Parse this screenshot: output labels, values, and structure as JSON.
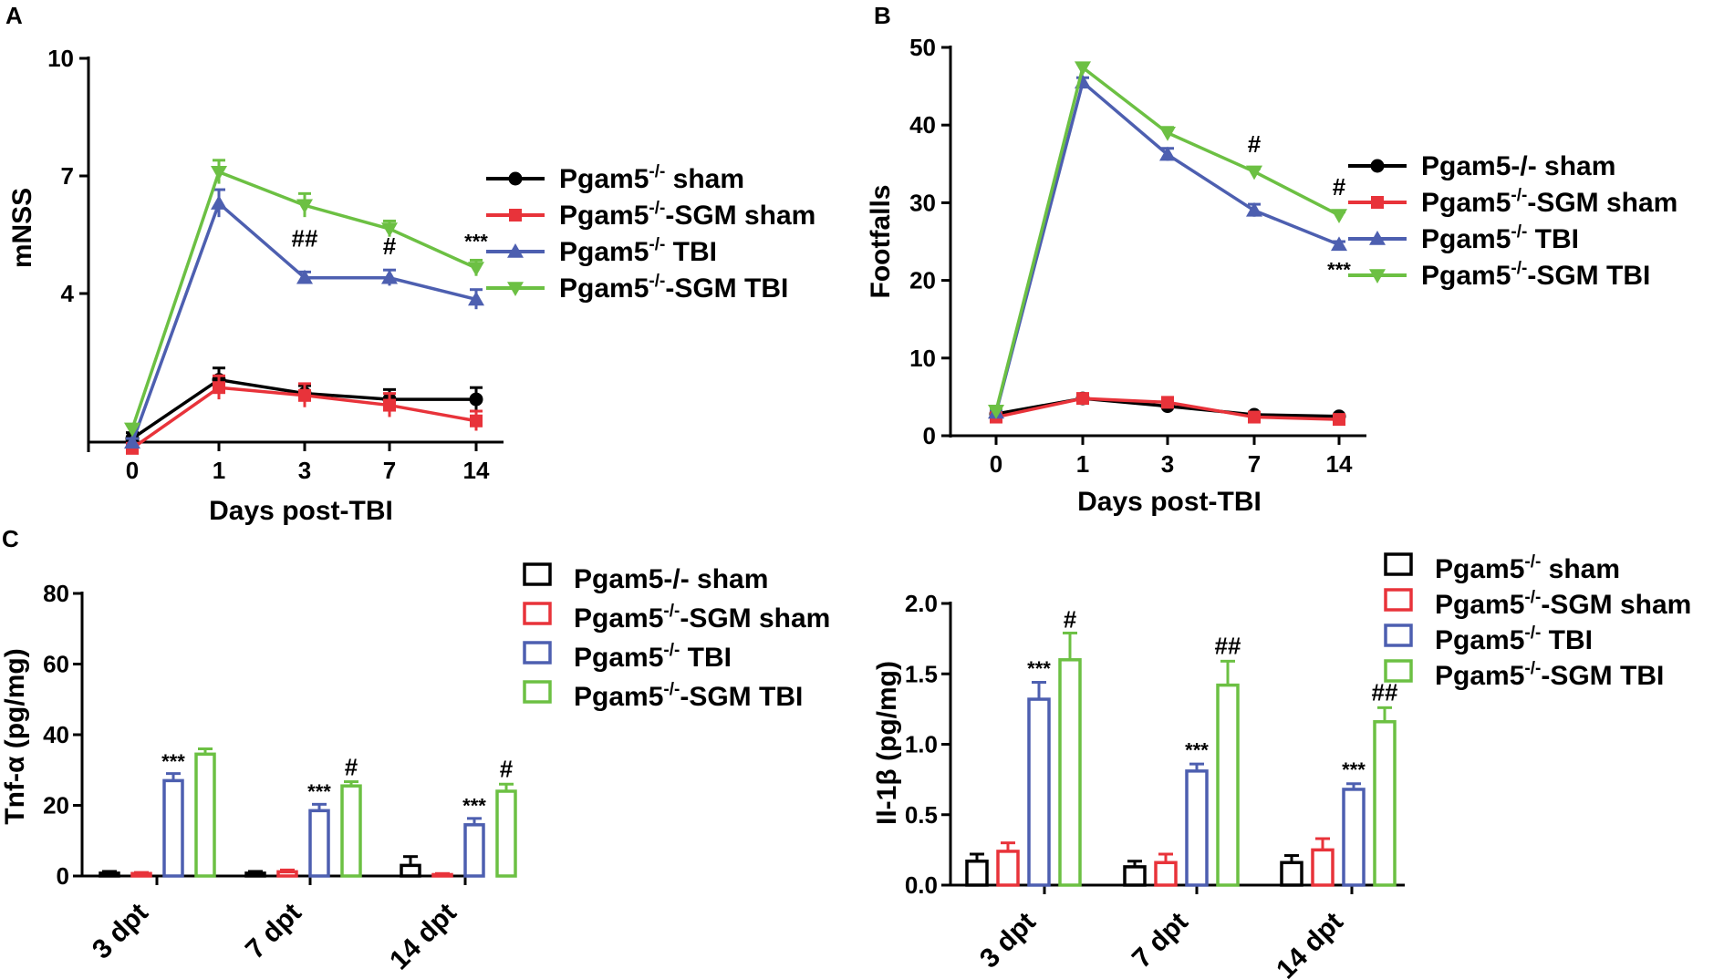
{
  "colors": {
    "black": "#000000",
    "red": "#e8333a",
    "blue": "#4d5fb0",
    "green": "#6cc043"
  },
  "chart_data": [
    {
      "panel": "A",
      "type": "line",
      "xlabel": "Days post-TBI",
      "ylabel": "mNSS",
      "x": [
        "0",
        "1",
        "3",
        "7",
        "14"
      ],
      "y_ticks": [
        "4",
        "7",
        "10"
      ],
      "ylim": [
        0,
        10
      ],
      "series": [
        {
          "name": "Pgam5 sham",
          "sup": "-/-",
          "sep": " ",
          "suffix": "sham",
          "color": "black",
          "marker": "circle",
          "values": [
            0.3,
            1.8,
            1.45,
            1.3,
            1.3
          ],
          "errors": [
            0.15,
            0.3,
            0.2,
            0.25,
            0.3
          ]
        },
        {
          "name": "Pgam5-SGM sham",
          "sup": "-/-",
          "sep": "-",
          "suffix": "SGM sham",
          "color": "red",
          "marker": "square",
          "values": [
            0.05,
            1.6,
            1.4,
            1.15,
            0.75
          ],
          "errors": [
            0.1,
            0.3,
            0.3,
            0.3,
            0.25
          ]
        },
        {
          "name": "Pgam5 TBI",
          "sup": "-/-",
          "sep": " ",
          "suffix": "TBI",
          "color": "blue",
          "marker": "triangle-up",
          "values": [
            0.2,
            6.3,
            4.4,
            4.4,
            3.85
          ],
          "errors": [
            0.1,
            0.35,
            0.15,
            0.2,
            0.25
          ]
        },
        {
          "name": "Pgam5-SGM TBI",
          "sup": "-/-",
          "sep": "-",
          "suffix": "SGM TBI",
          "color": "green",
          "marker": "triangle-down",
          "values": [
            0.55,
            7.1,
            6.25,
            5.65,
            4.65
          ],
          "errors": [
            0.1,
            0.3,
            0.3,
            0.2,
            0.2
          ]
        }
      ],
      "annotations": [
        {
          "text": "##",
          "x": "3",
          "y": 5.2
        },
        {
          "text": "#",
          "x": "7",
          "y": 5.0
        },
        {
          "text": "***",
          "x": "14",
          "y": 5.15
        }
      ]
    },
    {
      "panel": "B",
      "type": "line",
      "xlabel": "Days post-TBI",
      "ylabel": "Footfalls",
      "x": [
        "0",
        "1",
        "3",
        "7",
        "14"
      ],
      "y_ticks": [
        "0",
        "10",
        "20",
        "30",
        "40",
        "50"
      ],
      "ylim": [
        0,
        50
      ],
      "series": [
        {
          "name": "Pgam5-/- sham",
          "sup": "",
          "sep": "",
          "suffix": "-/- sham",
          "color": "black",
          "marker": "circle",
          "values": [
            2.8,
            4.8,
            3.8,
            2.7,
            2.5
          ],
          "errors": [
            0.2,
            0.3,
            0.3,
            0.2,
            0.2
          ]
        },
        {
          "name": "Pgam5-SGM sham",
          "sup": "-/-",
          "sep": "-",
          "suffix": "SGM sham",
          "color": "red",
          "marker": "square",
          "values": [
            2.4,
            4.8,
            4.3,
            2.4,
            2.1
          ],
          "errors": [
            0.2,
            0.3,
            0.3,
            0.2,
            0.2
          ]
        },
        {
          "name": "Pgam5 TBI",
          "sup": "-/-",
          "sep": " ",
          "suffix": "TBI",
          "color": "blue",
          "marker": "triangle-up",
          "values": [
            3.0,
            45.5,
            36.2,
            29.0,
            24.6
          ],
          "errors": [
            0.3,
            0.6,
            0.8,
            0.8,
            0.4
          ]
        },
        {
          "name": "Pgam5-SGM TBI",
          "sup": "-/-",
          "sep": "-",
          "suffix": "SGM TBI",
          "color": "green",
          "marker": "triangle-down",
          "values": [
            3.2,
            47.4,
            39.0,
            34.0,
            28.4
          ],
          "errors": [
            0.3,
            0.5,
            0.7,
            0.4,
            0.4
          ]
        }
      ],
      "annotations": [
        {
          "text": "#",
          "x": "7",
          "y": 36.5
        },
        {
          "text": "#",
          "x": "14",
          "y": 31.0
        },
        {
          "text": "***",
          "x": "14",
          "y": 20.5
        }
      ]
    },
    {
      "panel": "C",
      "type": "bar",
      "ylabel": "Tnf-α (pg/mg)",
      "categories": [
        "3 dpt",
        "7 dpt",
        "14 dpt"
      ],
      "y_ticks": [
        "0",
        "20",
        "40",
        "60",
        "80"
      ],
      "ylim": [
        0,
        80
      ],
      "series": [
        {
          "name": "Pgam5-/- sham",
          "color": "black",
          "values": [
            0.8,
            0.8,
            3.0
          ],
          "errors": [
            0.5,
            0.5,
            2.5
          ]
        },
        {
          "name": "Pgam5-SGM sham",
          "color": "red",
          "values": [
            0.7,
            1.2,
            0.4
          ],
          "errors": [
            0.3,
            0.5,
            0.3
          ]
        },
        {
          "name": "Pgam5 TBI",
          "color": "blue",
          "values": [
            27.0,
            18.5,
            14.5
          ],
          "errors": [
            2.0,
            1.8,
            1.8
          ]
        },
        {
          "name": "Pgam5-SGM TBI",
          "color": "green",
          "values": [
            34.5,
            25.5,
            24.0
          ],
          "errors": [
            1.5,
            1.2,
            2.0
          ]
        }
      ],
      "legend": [
        {
          "prefix": "Pgam5",
          "sup": "",
          "sep": "",
          "suffix": "-/- sham",
          "color": "black"
        },
        {
          "prefix": "Pgam5",
          "sup": "-/-",
          "sep": "-",
          "suffix": "SGM sham",
          "color": "red"
        },
        {
          "prefix": "Pgam5",
          "sup": "-/-",
          "sep": " ",
          "suffix": "TBI",
          "color": "blue"
        },
        {
          "prefix": "Pgam5",
          "sup": "-/-",
          "sep": "-",
          "suffix": "SGM TBI",
          "color": "green"
        }
      ],
      "annotations": [
        {
          "text": "***",
          "category": 0,
          "series": 2,
          "y": 30.5
        },
        {
          "text": "***",
          "category": 1,
          "series": 2,
          "y": 22.0
        },
        {
          "text": "#",
          "category": 1,
          "series": 3,
          "y": 28.5
        },
        {
          "text": "***",
          "category": 2,
          "series": 2,
          "y": 18.0
        },
        {
          "text": "#",
          "category": 2,
          "series": 3,
          "y": 28.0
        }
      ]
    },
    {
      "panel": "",
      "type": "bar",
      "ylabel": "Il-1β  (pg/mg)",
      "categories": [
        "3 dpt",
        "7 dpt",
        "14 dpt"
      ],
      "y_ticks": [
        "0.0",
        "0.5",
        "1.0",
        "1.5",
        "2.0"
      ],
      "ylim": [
        0,
        2
      ],
      "series": [
        {
          "name": "Pgam5 sham",
          "color": "black",
          "values": [
            0.17,
            0.13,
            0.16
          ],
          "errors": [
            0.05,
            0.04,
            0.05
          ]
        },
        {
          "name": "Pgam5-SGM sham",
          "color": "red",
          "values": [
            0.24,
            0.16,
            0.25
          ],
          "errors": [
            0.06,
            0.06,
            0.08
          ]
        },
        {
          "name": "Pgam5 TBI",
          "color": "blue",
          "values": [
            1.32,
            0.81,
            0.68
          ],
          "errors": [
            0.12,
            0.05,
            0.04
          ]
        },
        {
          "name": "Pgam5-SGM TBI",
          "color": "green",
          "values": [
            1.6,
            1.42,
            1.16
          ],
          "errors": [
            0.19,
            0.17,
            0.1
          ]
        }
      ],
      "legend": [
        {
          "prefix": "Pgam5",
          "sup": "-/-",
          "sep": " ",
          "suffix": "sham",
          "color": "black"
        },
        {
          "prefix": "Pgam5",
          "sup": "-/-",
          "sep": "-",
          "suffix": "SGM sham",
          "color": "red"
        },
        {
          "prefix": "Pgam5",
          "sup": "-/-",
          "sep": " ",
          "suffix": "TBI",
          "color": "blue"
        },
        {
          "prefix": "Pgam5",
          "sup": "-/-",
          "sep": "-",
          "suffix": "SGM TBI",
          "color": "green"
        }
      ],
      "annotations": [
        {
          "text": "***",
          "category": 0,
          "series": 2,
          "y": 1.49
        },
        {
          "text": "#",
          "category": 0,
          "series": 3,
          "y": 1.83
        },
        {
          "text": "***",
          "category": 1,
          "series": 2,
          "y": 0.91
        },
        {
          "text": "##",
          "category": 1,
          "series": 3,
          "y": 1.64
        },
        {
          "text": "***",
          "category": 2,
          "series": 2,
          "y": 0.77
        },
        {
          "text": "##",
          "category": 2,
          "series": 3,
          "y": 1.31
        }
      ]
    }
  ]
}
